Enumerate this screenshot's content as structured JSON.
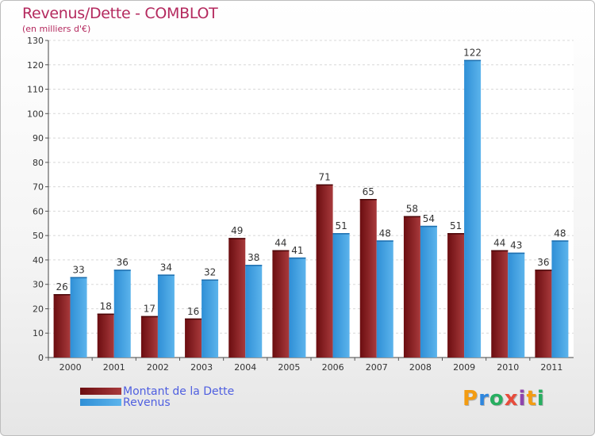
{
  "title": "Revenus/Dette - COMBLOT",
  "subtitle": "(en milliers d'€)",
  "colors": {
    "dette": "#6b0d10",
    "dette_light": "#a83a3c",
    "revenus": "#2f8fd6",
    "revenus_light": "#5cb4ec",
    "title": "#b4295e",
    "legend_text": "#4f5fe0"
  },
  "legend": {
    "dette": "Montant de la Dette",
    "revenus": "Revenus"
  },
  "logo": {
    "letters": [
      "P",
      "r",
      "o",
      "x",
      "i",
      "t",
      "i"
    ],
    "colors": [
      "#f39c12",
      "#2e86de",
      "#27ae60",
      "#e74c3c",
      "#8e44ad",
      "#f39c12",
      "#27ae60"
    ]
  },
  "chart_data": {
    "type": "bar",
    "categories": [
      "2000",
      "2001",
      "2002",
      "2003",
      "2004",
      "2005",
      "2006",
      "2007",
      "2008",
      "2009",
      "2010",
      "2011"
    ],
    "series": [
      {
        "name": "Montant de la Dette",
        "values": [
          26,
          18,
          17,
          16,
          49,
          44,
          71,
          65,
          58,
          51,
          44,
          36
        ]
      },
      {
        "name": "Revenus",
        "values": [
          33,
          36,
          34,
          32,
          38,
          41,
          51,
          48,
          54,
          122,
          43,
          48
        ]
      }
    ],
    "ylim": [
      0,
      130
    ],
    "yticks": [
      0,
      10,
      20,
      30,
      40,
      50,
      60,
      70,
      80,
      90,
      100,
      110,
      120,
      130
    ],
    "grid": true,
    "legend_position": "bottom-left"
  }
}
